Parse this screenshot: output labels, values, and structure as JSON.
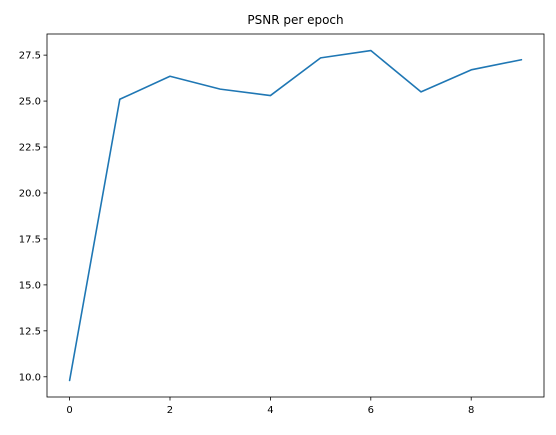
{
  "chart_data": {
    "type": "line",
    "title": "PSNR per epoch",
    "xlabel": "",
    "ylabel": "",
    "xlim": [
      -0.45,
      9.45
    ],
    "ylim": [
      8.9,
      28.65
    ],
    "xticks": [
      0,
      2,
      4,
      6,
      8
    ],
    "xtick_labels": [
      "0",
      "2",
      "4",
      "6",
      "8"
    ],
    "yticks": [
      10.0,
      12.5,
      15.0,
      17.5,
      20.0,
      22.5,
      25.0,
      27.5
    ],
    "ytick_labels": [
      "10.0",
      "12.5",
      "15.0",
      "17.5",
      "20.0",
      "22.5",
      "25.0",
      "27.5"
    ],
    "grid": false,
    "series": [
      {
        "color": "#1f77b4",
        "x": [
          0,
          1,
          2,
          3,
          4,
          5,
          6,
          7,
          8,
          9
        ],
        "y": [
          9.8,
          25.1,
          26.35,
          25.65,
          25.3,
          27.35,
          27.75,
          25.5,
          26.7,
          27.25
        ]
      }
    ]
  }
}
